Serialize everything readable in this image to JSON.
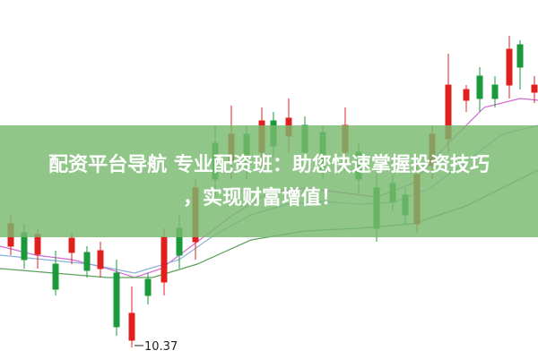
{
  "banner": {
    "line1": "配资平台导航 专业配资班：助您快速掌握投资技巧",
    "line2": "，实现财富增值！"
  },
  "low_label": "10.37"
}
